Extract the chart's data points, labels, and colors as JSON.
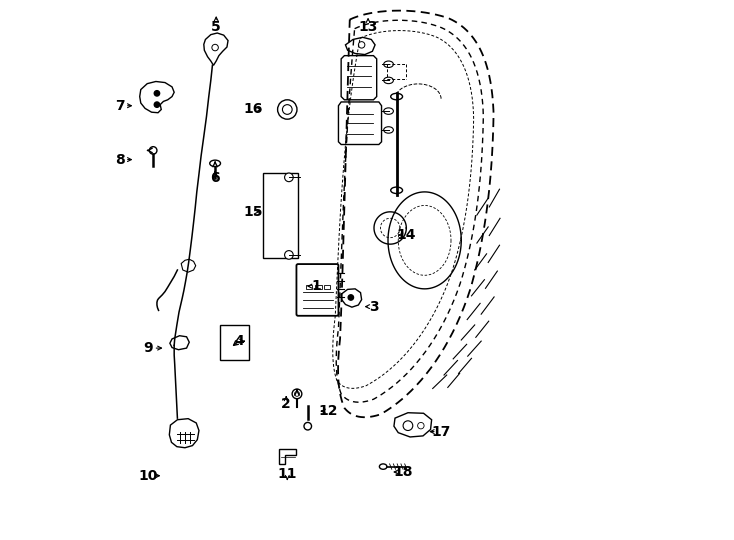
{
  "background_color": "#ffffff",
  "line_color": "#000000",
  "line_width": 1.0,
  "figsize": [
    7.34,
    5.4
  ],
  "dpi": 100
}
